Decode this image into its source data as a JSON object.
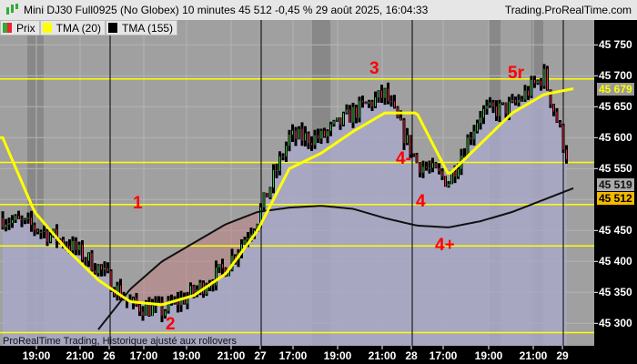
{
  "title": "Mini DJ30 Full0925 (No Globex) 10 minutes 45 512 -0,45 % 29 août 2025, 16:04:33",
  "site": "Trading.ProRealTime.com",
  "legend": [
    {
      "label": "Prix",
      "color": "#33aa33"
    },
    {
      "label": "TMA (20)",
      "color": "#ffff00"
    },
    {
      "label": "TMA (155)",
      "color": "#000000"
    }
  ],
  "price_axis": [
    "45 750",
    "45 700",
    "45 650",
    "45 600",
    "45 550",
    "45 450",
    "45 400",
    "45 350",
    "45 300"
  ],
  "price_labels": {
    "tma20": "45 679",
    "prev": "45 519",
    "last": "45 512"
  },
  "time_axis": [
    "19:00",
    "21:00",
    "26",
    "17:00",
    "19:00",
    "21:00",
    "27",
    "17:00",
    "19:00",
    "21:00",
    "28",
    "17:00",
    "19:00",
    "21:00",
    "29"
  ],
  "annotations": [
    "1",
    "2",
    "3",
    "4-",
    "4",
    "4+",
    "5r"
  ],
  "footer": "ProRealTime Trading, Historique ajusté aux rollovers",
  "colors": {
    "background": "#a0a0a0",
    "price_fill": "#a8a8c8",
    "hline": "#ffff00",
    "annotation": "#ff0000",
    "up": "#33cc33",
    "down": "#ee2244"
  },
  "chart_data": {
    "type": "candlestick",
    "close_keyframes": [
      45470,
      45455,
      45430,
      45390,
      45330,
      45320,
      45350,
      45390,
      45470,
      45600,
      45600,
      45640,
      45670,
      45560,
      45530,
      45640,
      45650,
      45700,
      45520
    ],
    "tma20": [
      45600,
      45480,
      45420,
      45370,
      45335,
      45330,
      45345,
      45380,
      45450,
      45550,
      45575,
      45610,
      45640,
      45640,
      45540,
      45590,
      45640,
      45670,
      45680
    ],
    "tma155": [
      null,
      null,
      null,
      45290,
      45355,
      45400,
      45430,
      45460,
      45480,
      45487,
      45490,
      45485,
      45470,
      45458,
      45455,
      45465,
      45480,
      45500,
      45520
    ],
    "horizontal_levels": [
      45695,
      45560,
      45492,
      45425,
      45285
    ],
    "ylim": [
      45270,
      45780
    ]
  }
}
